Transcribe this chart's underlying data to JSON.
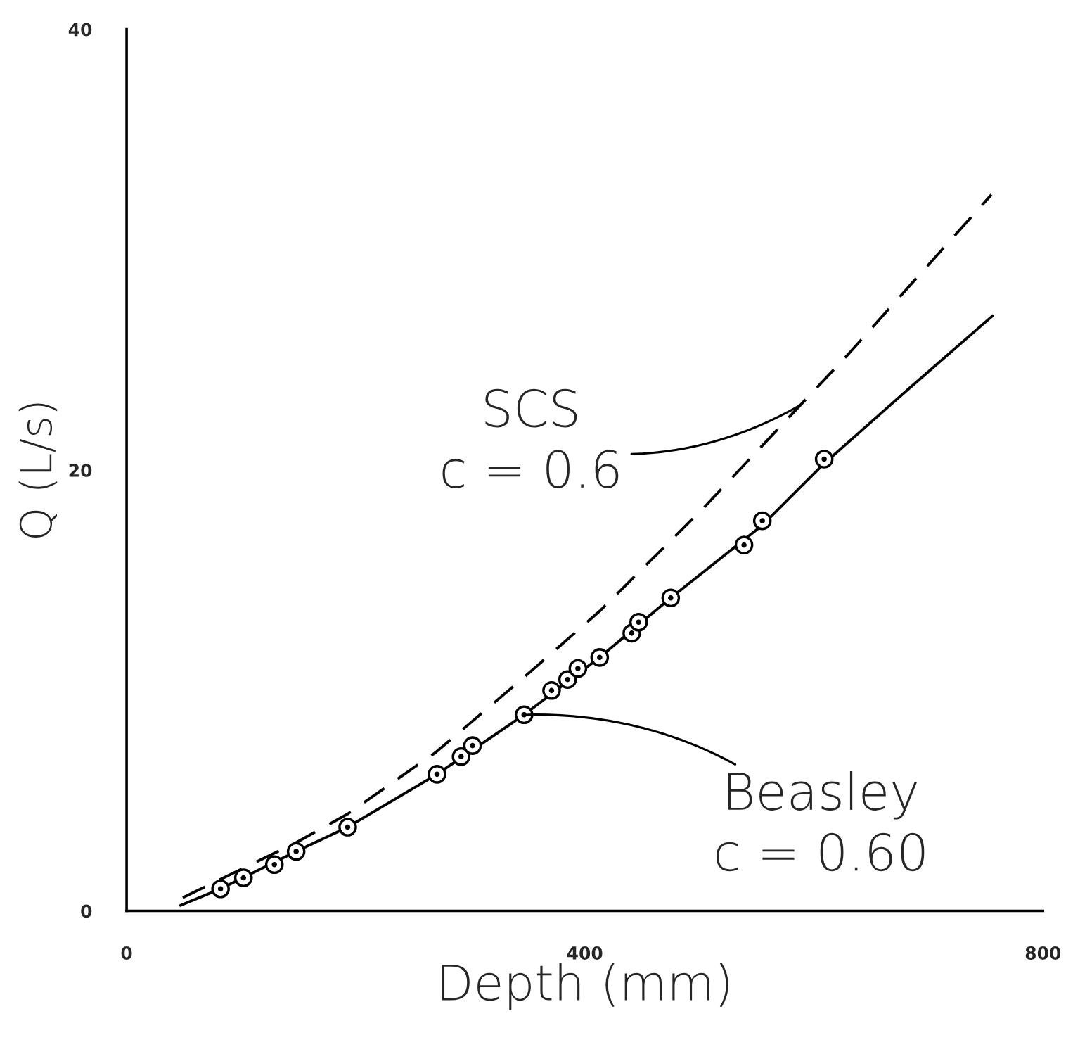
{
  "chart_data": {
    "type": "line",
    "xlabel": "Depth (mm)",
    "ylabel": "Q (L/s)",
    "xlim": [
      0,
      800
    ],
    "ylim": [
      0,
      40
    ],
    "xticks": [
      0,
      400,
      800
    ],
    "yticks": [
      0,
      20,
      40
    ],
    "series": [
      {
        "type": "scatter",
        "color": "#000000",
        "marker": "circle",
        "x": [
          82,
          102,
          129,
          148,
          193,
          271,
          292,
          302,
          347,
          371,
          385,
          394,
          413,
          441,
          447,
          475,
          539,
          555,
          609
        ],
        "values": [
          1.0,
          1.5,
          2.1,
          2.7,
          3.8,
          6.2,
          7.0,
          7.5,
          8.9,
          10.0,
          10.5,
          11.0,
          11.5,
          12.6,
          13.1,
          14.2,
          16.6,
          17.7,
          20.5
        ]
      },
      {
        "color": "#000000",
        "line_style": "solid",
        "x": [
          47,
          82,
          148,
          193,
          271,
          347,
          413,
          475,
          555,
          609,
          683,
          756
        ],
        "values": [
          0.25,
          1.0,
          2.7,
          3.8,
          6.2,
          8.9,
          11.5,
          14.2,
          17.5,
          20.3,
          23.7,
          27.0
        ]
      },
      {
        "color": "#000000",
        "line_style": "dashed",
        "x": [
          49,
          148,
          193,
          270,
          347,
          413,
          504,
          629,
          755
        ],
        "values": [
          0.6,
          3.1,
          4.4,
          7.2,
          10.6,
          13.6,
          18.3,
          25.2,
          32.5
        ]
      }
    ],
    "annotations": [
      {
        "text": "SCS\nc = 0.6",
        "x": 590,
        "y": 23.0
      },
      {
        "text": "Beasley\nc = 0.60",
        "x": 347,
        "y": 8.9
      }
    ]
  }
}
